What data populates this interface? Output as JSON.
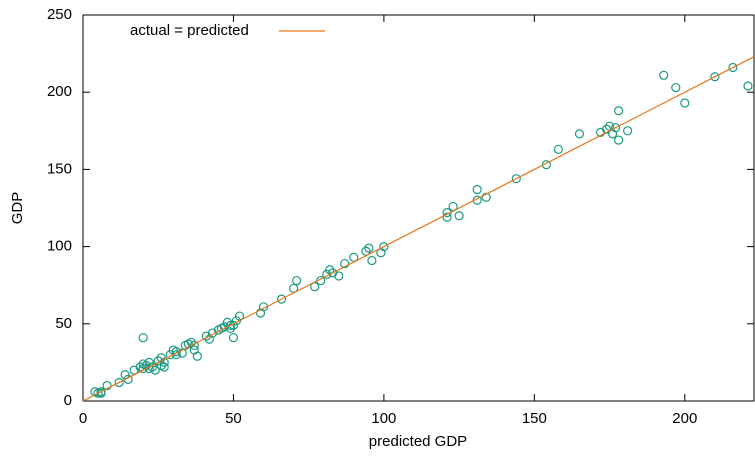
{
  "chart_data": {
    "type": "scatter",
    "xlabel": "predicted GDP",
    "ylabel": "GDP",
    "xlim": [
      0,
      223
    ],
    "ylim": [
      0,
      250
    ],
    "xticks": [
      0,
      50,
      100,
      150,
      200
    ],
    "yticks": [
      0,
      50,
      100,
      150,
      200,
      250
    ],
    "legend": "top-left",
    "series": [
      {
        "color": "#1a9a82",
        "marker": "circle",
        "x": [
          4,
          5,
          6,
          6,
          8,
          12,
          14,
          15,
          17,
          19,
          20,
          20,
          20,
          21,
          22,
          22,
          23,
          24,
          25,
          26,
          26,
          27,
          27,
          29,
          30,
          31,
          31,
          33,
          34,
          35,
          36,
          37,
          37,
          38,
          41,
          42,
          43,
          45,
          46,
          47,
          48,
          49,
          49,
          50,
          50,
          51,
          52,
          59,
          60,
          66,
          70,
          71,
          77,
          79,
          81,
          82,
          83,
          85,
          87,
          90,
          94,
          95,
          96,
          99,
          100,
          121,
          121,
          123,
          125,
          131,
          131,
          134,
          144,
          154,
          158,
          165,
          172,
          174,
          175,
          176,
          177,
          178,
          178,
          181,
          193,
          197,
          200,
          210,
          216,
          221
        ],
        "values": [
          6,
          5,
          6,
          5,
          10,
          12,
          17,
          14,
          20,
          22,
          41,
          24,
          21,
          23,
          25,
          21,
          22,
          20,
          26,
          28,
          23,
          25,
          22,
          30,
          33,
          32,
          30,
          31,
          36,
          37,
          38,
          36,
          33,
          29,
          42,
          40,
          44,
          46,
          47,
          48,
          51,
          49,
          47,
          49,
          41,
          52,
          55,
          57,
          61,
          66,
          73,
          78,
          74,
          78,
          82,
          85,
          83,
          81,
          89,
          93,
          97,
          99,
          91,
          96,
          100,
          122,
          119,
          126,
          120,
          130,
          137,
          132,
          144,
          153,
          163,
          173,
          174,
          176,
          178,
          173,
          177,
          188,
          169,
          175,
          211,
          203,
          193,
          210,
          216,
          204
        ]
      },
      {
        "name": "actual = predicted",
        "color": "#e4761b",
        "line": true,
        "x": [
          0,
          223
        ],
        "values": [
          0,
          223
        ]
      }
    ]
  }
}
